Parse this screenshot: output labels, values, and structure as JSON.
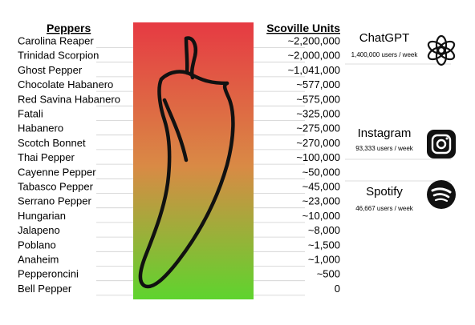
{
  "chart_data": {
    "type": "table",
    "headers": {
      "left": "Peppers",
      "right": "Scoville Units"
    },
    "rows": [
      {
        "pepper": "Carolina Reaper",
        "scoville": "~2,200,000",
        "value": 2200000
      },
      {
        "pepper": "Trinidad Scorpion",
        "scoville": "~2,000,000",
        "value": 2000000
      },
      {
        "pepper": "Ghost Pepper",
        "scoville": "~1,041,000",
        "value": 1041000
      },
      {
        "pepper": "Chocolate Habanero",
        "scoville": "~577,000",
        "value": 577000
      },
      {
        "pepper": "Red Savina Habanero",
        "scoville": "~575,000",
        "value": 575000
      },
      {
        "pepper": "Fatali",
        "scoville": "~325,000",
        "value": 325000
      },
      {
        "pepper": "Habanero",
        "scoville": "~275,000",
        "value": 275000
      },
      {
        "pepper": "Scotch Bonnet",
        "scoville": "~270,000",
        "value": 270000
      },
      {
        "pepper": "Thai Pepper",
        "scoville": "~100,000",
        "value": 100000
      },
      {
        "pepper": "Cayenne Pepper",
        "scoville": "~50,000",
        "value": 50000
      },
      {
        "pepper": "Tabasco Pepper",
        "scoville": "~45,000",
        "value": 45000
      },
      {
        "pepper": "Serrano Pepper",
        "scoville": "~23,000",
        "value": 23000
      },
      {
        "pepper": "Hungarian",
        "scoville": "~10,000",
        "value": 10000
      },
      {
        "pepper": "Jalapeno",
        "scoville": "~8,000",
        "value": 8000
      },
      {
        "pepper": "Poblano",
        "scoville": "~1,500",
        "value": 1500
      },
      {
        "pepper": "Anaheim",
        "scoville": "~1,000",
        "value": 1000
      },
      {
        "pepper": "Pepperoncini",
        "scoville": "~500",
        "value": 500
      },
      {
        "pepper": "Bell Pepper",
        "scoville": "0",
        "value": 0
      }
    ],
    "gradient": {
      "top": "#e63a43",
      "middle": "#d98a45",
      "bottom": "#5ed42e"
    },
    "annotations": [
      {
        "name": "ChatGPT",
        "subtitle": "1,400,000 users / week",
        "aligned_to": "Carolina Reaper",
        "icon": "openai-logo-icon"
      },
      {
        "name": "Instagram",
        "subtitle": "93,333 users / week",
        "aligned_to": "Thai Pepper",
        "icon": "instagram-icon"
      },
      {
        "name": "Spotify",
        "subtitle": "46,667 users / week",
        "aligned_to": "Cayenne Pepper",
        "icon": "spotify-icon"
      }
    ]
  }
}
